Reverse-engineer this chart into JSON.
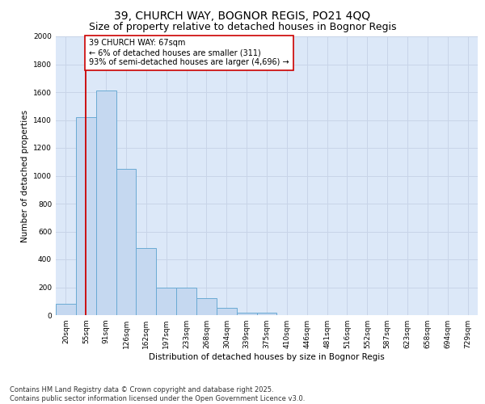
{
  "title": "39, CHURCH WAY, BOGNOR REGIS, PO21 4QQ",
  "subtitle": "Size of property relative to detached houses in Bognor Regis",
  "xlabel": "Distribution of detached houses by size in Bognor Regis",
  "ylabel": "Number of detached properties",
  "categories": [
    "20sqm",
    "55sqm",
    "91sqm",
    "126sqm",
    "162sqm",
    "197sqm",
    "233sqm",
    "268sqm",
    "304sqm",
    "339sqm",
    "375sqm",
    "410sqm",
    "446sqm",
    "481sqm",
    "516sqm",
    "552sqm",
    "587sqm",
    "623sqm",
    "658sqm",
    "694sqm",
    "729sqm"
  ],
  "values": [
    80,
    1420,
    1610,
    1050,
    480,
    200,
    200,
    120,
    50,
    20,
    20,
    0,
    0,
    0,
    0,
    0,
    0,
    0,
    0,
    0,
    0
  ],
  "bar_color": "#c5d8f0",
  "bar_edge_color": "#6aaad4",
  "vline_x": 1,
  "vline_color": "#cc0000",
  "annotation_text": "39 CHURCH WAY: 67sqm\n← 6% of detached houses are smaller (311)\n93% of semi-detached houses are larger (4,696) →",
  "annotation_box_color": "#ffffff",
  "annotation_box_edge_color": "#cc0000",
  "ylim": [
    0,
    2000
  ],
  "yticks": [
    0,
    200,
    400,
    600,
    800,
    1000,
    1200,
    1400,
    1600,
    1800,
    2000
  ],
  "grid_color": "#c8d4e8",
  "background_color": "#dce8f8",
  "footer": "Contains HM Land Registry data © Crown copyright and database right 2025.\nContains public sector information licensed under the Open Government Licence v3.0.",
  "title_fontsize": 10,
  "subtitle_fontsize": 9,
  "axis_label_fontsize": 7.5,
  "tick_fontsize": 6.5,
  "annotation_fontsize": 7,
  "footer_fontsize": 6
}
